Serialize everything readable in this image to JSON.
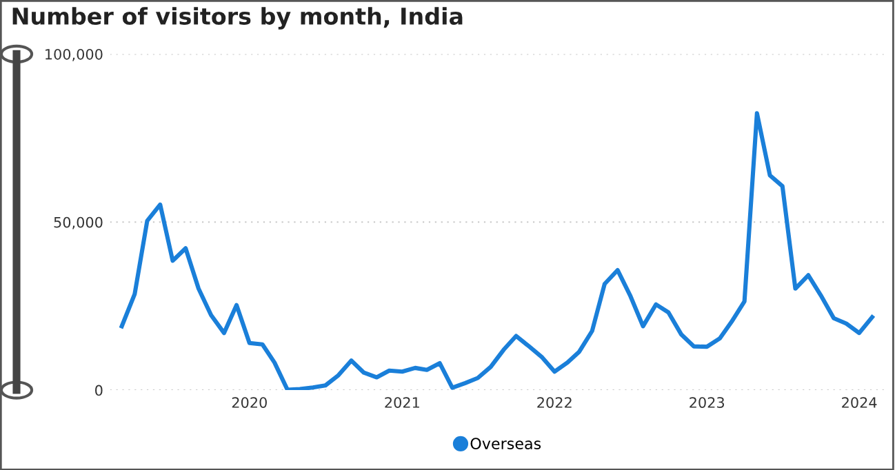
{
  "chart_data": {
    "type": "line",
    "title": "Number of visitors by month, India",
    "x": [
      "2019-03",
      "2019-04",
      "2019-05",
      "2019-06",
      "2019-07",
      "2019-08",
      "2019-09",
      "2019-10",
      "2019-11",
      "2019-12",
      "2020-01",
      "2020-02",
      "2020-03",
      "2020-04",
      "2020-05",
      "2020-06",
      "2020-07",
      "2020-08",
      "2020-09",
      "2020-10",
      "2020-11",
      "2020-12",
      "2021-01",
      "2021-02",
      "2021-03",
      "2021-04",
      "2021-05",
      "2021-06",
      "2021-07",
      "2021-08",
      "2021-09",
      "2021-10",
      "2021-11",
      "2021-12",
      "2022-01",
      "2022-02",
      "2022-03",
      "2022-04",
      "2022-05",
      "2022-06",
      "2022-07",
      "2022-08",
      "2022-09",
      "2022-10",
      "2022-11",
      "2022-12",
      "2023-01",
      "2023-02",
      "2023-03",
      "2023-04",
      "2023-05",
      "2023-06",
      "2023-07",
      "2023-08",
      "2023-09",
      "2023-10",
      "2023-11",
      "2023-12",
      "2024-01",
      "2024-02"
    ],
    "series": [
      {
        "name": "Overseas",
        "color": "#1a7fd9",
        "values": [
          19000,
          28600,
          50400,
          55200,
          38500,
          42200,
          30200,
          22300,
          17000,
          25300,
          14000,
          13600,
          8200,
          100,
          300,
          800,
          1400,
          4400,
          8800,
          5200,
          3800,
          5800,
          5500,
          6600,
          6000,
          8000,
          700,
          2100,
          3600,
          6900,
          12000,
          16100,
          13000,
          9900,
          5500,
          8200,
          11400,
          17600,
          31600,
          35700,
          28200,
          19000,
          25500,
          23100,
          16500,
          13000,
          12900,
          15400,
          20300,
          26400,
          82400,
          63900,
          60700,
          30200,
          34200,
          28200,
          21400,
          19800,
          17000,
          21700
        ]
      }
    ],
    "xlim": [
      "2019-02",
      "2024-03"
    ],
    "xticks": [
      {
        "value": "2020-01",
        "label": "2020"
      },
      {
        "value": "2021-01",
        "label": "2021"
      },
      {
        "value": "2022-01",
        "label": "2022"
      },
      {
        "value": "2023-01",
        "label": "2023"
      },
      {
        "value": "2024-01",
        "label": "2024"
      }
    ],
    "ylim": [
      0,
      100000
    ],
    "yticks": [
      {
        "value": 0,
        "label": "0"
      },
      {
        "value": 50000,
        "label": "50,000"
      },
      {
        "value": 100000,
        "label": "100,000"
      }
    ],
    "grid": "y",
    "legend": "bottom",
    "marker": "none",
    "line_style": "solid"
  }
}
